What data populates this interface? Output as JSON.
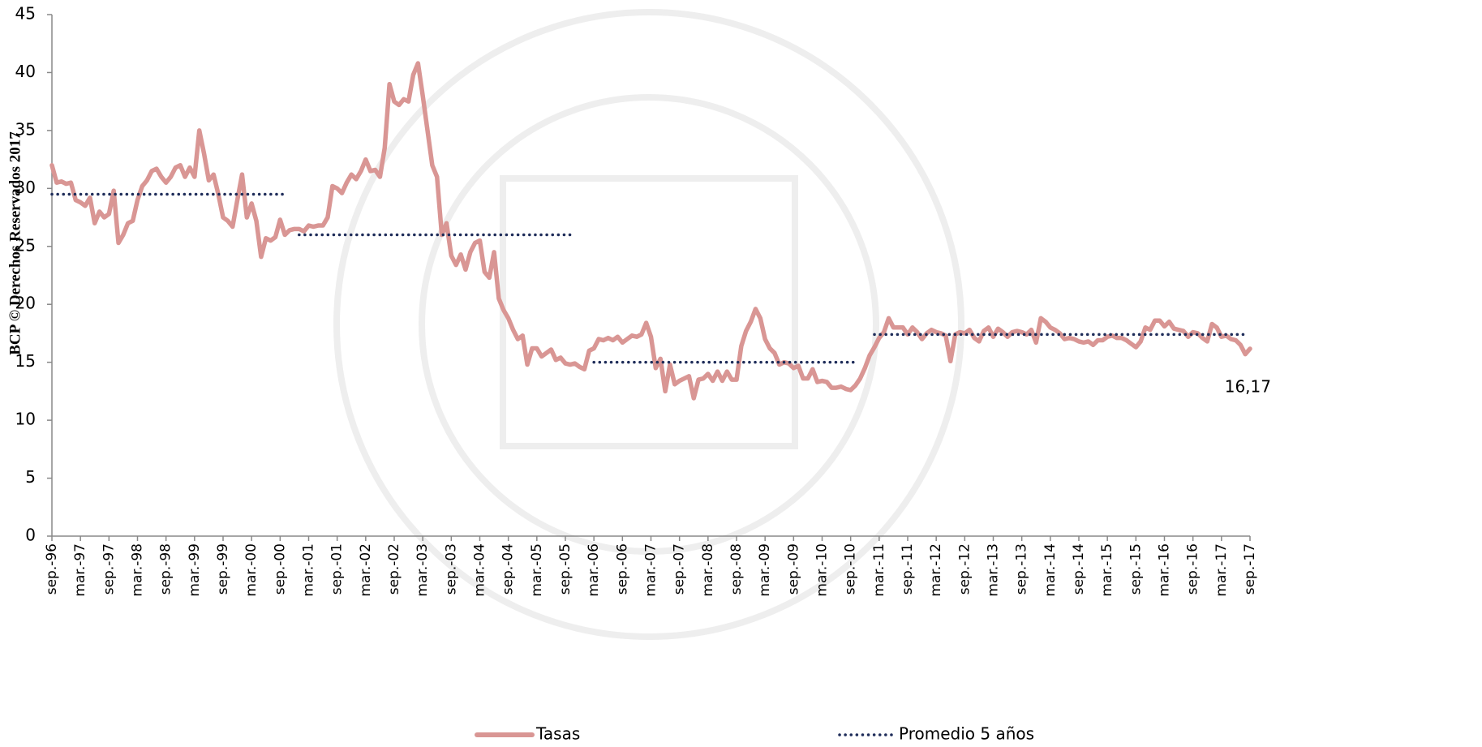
{
  "chart_data": {
    "type": "line",
    "watermark": "BCP © Derechos Reservados 2017",
    "categories": [
      "sep.-96",
      null,
      null,
      null,
      null,
      null,
      "mar.-97",
      null,
      null,
      null,
      null,
      null,
      "sep.-97",
      null,
      null,
      null,
      null,
      null,
      "mar.-98",
      null,
      null,
      null,
      null,
      null,
      "sep.-98",
      null,
      null,
      null,
      null,
      null,
      "mar.-99",
      null,
      null,
      null,
      null,
      null,
      "sep.-99",
      null,
      null,
      null,
      null,
      null,
      "mar.-00",
      null,
      null,
      null,
      null,
      null,
      "sep.-00",
      null,
      null,
      null,
      null,
      null,
      "mar.-01",
      null,
      null,
      null,
      null,
      null,
      "sep.-01",
      null,
      null,
      null,
      null,
      null,
      "mar.-02",
      null,
      null,
      null,
      null,
      null,
      "sep.-02",
      null,
      null,
      null,
      null,
      null,
      "mar.-03",
      null,
      null,
      null,
      null,
      null,
      "sep.-03",
      null,
      null,
      null,
      null,
      null,
      "mar.-04",
      null,
      null,
      null,
      null,
      null,
      "sep.-04",
      null,
      null,
      null,
      null,
      null,
      "mar.-05",
      null,
      null,
      null,
      null,
      null,
      "sep.-05",
      null,
      null,
      null,
      null,
      null,
      "mar.-06",
      null,
      null,
      null,
      null,
      null,
      "sep.-06",
      null,
      null,
      null,
      null,
      null,
      "mar.-07",
      null,
      null,
      null,
      null,
      null,
      "sep.-07",
      null,
      null,
      null,
      null,
      null,
      "mar.-08",
      null,
      null,
      null,
      null,
      null,
      "sep.-08",
      null,
      null,
      null,
      null,
      null,
      "mar.-09",
      null,
      null,
      null,
      null,
      null,
      "sep.-09",
      null,
      null,
      null,
      null,
      null,
      "mar.-10",
      null,
      null,
      null,
      null,
      null,
      "sep.-10",
      null,
      null,
      null,
      null,
      null,
      "mar.-11",
      null,
      null,
      null,
      null,
      null,
      "sep.-11",
      null,
      null,
      null,
      null,
      null,
      "mar.-12",
      null,
      null,
      null,
      null,
      null,
      "sep.-12",
      null,
      null,
      null,
      null,
      null,
      "mar.-13",
      null,
      null,
      null,
      null,
      null,
      "sep.-13",
      null,
      null,
      null,
      null,
      null,
      "mar.-14",
      null,
      null,
      null,
      null,
      null,
      "sep.-14",
      null,
      null,
      null,
      null,
      null,
      "mar.-15",
      null,
      null,
      null,
      null,
      null,
      "sep.-15",
      null,
      null,
      null,
      null,
      null,
      "mar.-16",
      null,
      null,
      null,
      null,
      null,
      "sep.-16",
      null,
      null,
      null,
      null,
      null,
      "mar.-17",
      null,
      null,
      null,
      null,
      null,
      "sep.-17"
    ],
    "series": [
      {
        "name": "Tasas",
        "color": "#d99694",
        "style": "solid",
        "values": [
          32,
          30.5,
          30.6,
          30.4,
          30.5,
          29,
          28.8,
          28.5,
          29.2,
          27,
          28,
          27.5,
          27.8,
          29.8,
          25.3,
          26,
          27,
          27.2,
          29,
          30.2,
          30.7,
          31.5,
          31.7,
          31,
          30.5,
          31,
          31.8,
          32,
          31,
          31.8,
          31,
          35,
          33,
          30.7,
          31.2,
          29.5,
          27.5,
          27.2,
          26.7,
          29,
          31.2,
          27.5,
          28.7,
          27.2,
          24.1,
          25.7,
          25.5,
          25.8,
          27.3,
          26,
          26.4,
          26.5,
          26.5,
          26.3,
          26.8,
          26.7,
          26.8,
          26.8,
          27.5,
          30.2,
          30,
          29.6,
          30.5,
          31.2,
          30.8,
          31.5,
          32.5,
          31.5,
          31.6,
          31,
          33.5,
          39,
          37.5,
          37.2,
          37.7,
          37.5,
          39.8,
          40.8,
          38,
          35,
          32,
          31,
          26,
          27,
          24.2,
          23.4,
          24.3,
          23,
          24.5,
          25.3,
          25.5,
          22.8,
          22.3,
          24.5,
          20.5,
          19.5,
          18.8,
          17.8,
          17,
          17.3,
          14.8,
          16.2,
          16.2,
          15.5,
          15.8,
          16.1,
          15.2,
          15.4,
          14.9,
          14.8,
          14.9,
          14.6,
          14.4,
          16,
          16.2,
          17,
          16.9,
          17.1,
          16.9,
          17.2,
          16.7,
          17,
          17.3,
          17.2,
          17.4,
          18.4,
          17.2,
          14.5,
          15.3,
          12.5,
          14.8,
          13.1,
          13.4,
          13.6,
          13.8,
          11.9,
          13.5,
          13.6,
          14,
          13.4,
          14.2,
          13.4,
          14.2,
          13.5,
          13.5,
          16.4,
          17.7,
          18.5,
          19.6,
          18.8,
          17,
          16.2,
          15.8,
          14.8,
          15,
          14.9,
          14.5,
          14.7,
          13.6,
          13.6,
          14.4,
          13.3,
          13.4,
          13.3,
          12.8,
          12.8,
          12.9,
          12.7,
          12.6,
          13,
          13.6,
          14.5,
          15.6,
          16.3,
          17.1,
          17.6,
          18.8,
          18,
          18,
          18,
          17.4,
          18,
          17.6,
          17,
          17.5,
          17.8,
          17.6,
          17.5,
          17.3,
          15.1,
          17.4,
          17.6,
          17.5,
          17.8,
          17.1,
          16.8,
          17.7,
          18,
          17.2,
          17.9,
          17.6,
          17.2,
          17.6,
          17.7,
          17.6,
          17.4,
          17.8,
          16.7,
          18.8,
          18.5,
          18,
          17.8,
          17.5,
          17,
          17.1,
          17,
          16.8,
          16.7,
          16.8,
          16.5,
          16.9,
          16.9,
          17.2,
          17.3,
          17.1,
          17.1,
          16.9,
          16.6,
          16.3,
          16.8,
          18,
          17.8,
          18.6,
          18.6,
          18.1,
          18.5,
          17.9,
          17.8,
          17.7,
          17.2,
          17.6,
          17.5,
          17.1,
          16.8,
          18.3,
          18,
          17.2,
          17.3,
          17,
          16.9,
          16.5,
          15.7,
          16.17
        ],
        "value_labels": [
          null,
          null,
          null,
          null,
          null,
          null,
          null,
          null,
          null,
          null,
          null,
          null,
          null,
          null,
          null,
          null,
          null,
          null,
          null,
          null,
          null,
          null,
          null,
          null,
          null,
          null,
          null,
          null,
          null,
          null,
          null,
          null,
          null,
          null,
          null,
          null,
          null,
          null,
          null,
          null,
          null,
          null,
          null,
          null,
          null,
          null,
          null,
          null,
          null,
          null,
          null,
          null,
          null,
          null,
          null,
          null,
          null,
          null,
          null,
          null,
          null,
          null,
          null,
          null,
          null,
          null,
          null,
          null,
          null,
          null,
          null,
          null,
          null,
          null,
          null,
          null,
          null,
          null,
          null,
          null,
          null,
          null,
          null,
          null,
          null,
          null,
          null,
          null,
          null,
          null,
          null,
          null,
          null,
          null,
          null,
          null,
          null,
          null,
          null,
          null,
          null,
          null,
          null,
          null,
          null,
          null,
          null,
          null,
          null,
          null,
          null,
          null,
          null,
          null,
          null,
          null,
          null,
          null,
          null,
          null,
          null,
          null,
          null,
          null,
          null,
          null,
          null,
          null,
          null,
          null,
          null,
          null,
          null,
          null,
          null,
          null,
          null,
          null,
          null,
          null,
          null,
          null,
          null,
          null,
          null,
          null,
          null,
          null,
          null,
          null,
          null,
          null,
          null,
          null,
          null,
          null,
          null,
          null,
          null,
          null,
          null,
          null,
          null,
          null,
          null,
          null,
          null,
          null,
          null,
          null,
          null,
          null,
          null,
          null,
          null,
          null,
          null,
          null,
          null,
          null,
          null,
          null,
          null,
          null,
          null,
          null,
          null,
          null,
          null,
          null,
          null,
          null,
          null,
          null,
          null,
          null,
          null,
          null,
          null,
          null,
          null,
          null,
          null,
          null,
          null,
          null,
          null,
          null,
          null,
          null,
          null,
          null,
          null,
          null,
          null,
          null,
          null,
          null,
          null,
          null,
          null,
          null,
          null,
          null,
          null,
          null,
          null,
          null,
          null,
          null,
          null,
          null,
          null,
          null,
          null,
          null,
          null,
          null,
          null,
          null,
          null,
          null,
          null,
          null,
          null,
          null,
          null,
          null,
          null,
          null,
          null,
          null,
          "16,17"
        ]
      },
      {
        "name": "Promedio 5 años",
        "color": "#1f2d5a",
        "style": "dotted",
        "values": [
          29.5,
          29.5,
          29.5,
          29.5,
          29.5,
          29.5,
          29.5,
          29.5,
          29.5,
          29.5,
          29.5,
          29.5,
          29.5,
          29.5,
          29.5,
          29.5,
          29.5,
          29.5,
          29.5,
          29.5,
          29.5,
          29.5,
          29.5,
          29.5,
          29.5,
          29.5,
          29.5,
          29.5,
          29.5,
          29.5,
          29.5,
          29.5,
          29.5,
          29.5,
          29.5,
          29.5,
          29.5,
          29.5,
          29.5,
          29.5,
          29.5,
          29.5,
          29.5,
          29.5,
          29.5,
          29.5,
          29.5,
          29.5,
          29.5,
          29.5,
          null,
          null,
          26,
          26,
          26,
          26,
          26,
          26,
          26,
          26,
          26,
          26,
          26,
          26,
          26,
          26,
          26,
          26,
          26,
          26,
          26,
          26,
          26,
          26,
          26,
          26,
          26,
          26,
          26,
          26,
          26,
          26,
          26,
          26,
          26,
          26,
          26,
          26,
          26,
          26,
          26,
          26,
          26,
          26,
          26,
          26,
          26,
          26,
          26,
          26,
          26,
          26,
          26,
          26,
          26,
          26,
          26,
          26,
          26,
          26,
          null,
          null,
          null,
          null,
          15,
          15,
          15,
          15,
          15,
          15,
          15,
          15,
          15,
          15,
          15,
          15,
          15,
          15,
          15,
          15,
          15,
          15,
          15,
          15,
          15,
          15,
          15,
          15,
          15,
          15,
          15,
          15,
          15,
          15,
          15,
          15,
          15,
          15,
          15,
          15,
          15,
          15,
          15,
          15,
          15,
          15,
          15,
          15,
          15,
          15,
          15,
          15,
          15,
          15,
          15,
          15,
          15,
          15,
          15,
          15,
          null,
          null,
          null,
          17.4,
          17.4,
          17.4,
          17.4,
          17.4,
          17.4,
          17.4,
          17.4,
          17.4,
          17.4,
          17.4,
          17.4,
          17.4,
          17.4,
          17.4,
          17.4,
          17.4,
          17.4,
          17.4,
          17.4,
          17.4,
          17.4,
          17.4,
          17.4,
          17.4,
          17.4,
          17.4,
          17.4,
          17.4,
          17.4,
          17.4,
          17.4,
          17.4,
          17.4,
          17.4,
          17.4,
          17.4,
          17.4,
          17.4,
          17.4,
          17.4,
          17.4,
          17.4,
          17.4,
          17.4,
          17.4,
          17.4,
          17.4,
          17.4,
          17.4,
          17.4,
          17.4,
          17.4,
          17.4,
          17.4,
          17.4,
          17.4,
          17.4,
          17.4,
          17.4,
          17.4,
          17.4,
          17.4,
          17.4,
          17.4,
          17.4,
          17.4,
          17.4,
          17.4,
          17.4,
          17.4,
          17.4,
          17.4,
          17.4,
          17.4,
          17.4,
          17.4,
          17.4,
          17.4,
          null
        ]
      }
    ],
    "ylim": [
      0,
      45
    ],
    "yticks": [
      0,
      5,
      10,
      15,
      20,
      25,
      30,
      35,
      40,
      45
    ],
    "grid": false,
    "legend": "bottom"
  }
}
